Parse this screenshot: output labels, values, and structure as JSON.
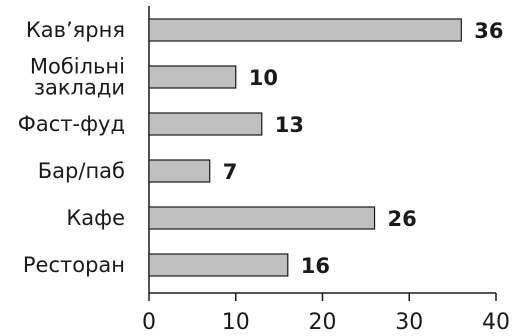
{
  "chart_data": {
    "type": "bar",
    "orientation": "horizontal",
    "categories": [
      [
        "Кав’ярня"
      ],
      [
        "Мобільні",
        "заклади"
      ],
      [
        "Фаст-фуд"
      ],
      [
        "Бар/паб"
      ],
      [
        "Кафе"
      ],
      [
        "Ресторан"
      ]
    ],
    "values": [
      36,
      10,
      13,
      7,
      26,
      16
    ],
    "value_labels": [
      "36",
      "10",
      "13",
      "7",
      "26",
      "16"
    ],
    "xlim": [
      0,
      40
    ],
    "x_ticks": [
      0,
      10,
      20,
      30,
      40
    ],
    "x_tick_labels": [
      "0",
      "10",
      "20",
      "30",
      "40"
    ],
    "title": "",
    "xlabel": "",
    "ylabel": "",
    "grid": false,
    "bar_color": "#c0c0c0",
    "edge_color": "#1a1a1a"
  }
}
